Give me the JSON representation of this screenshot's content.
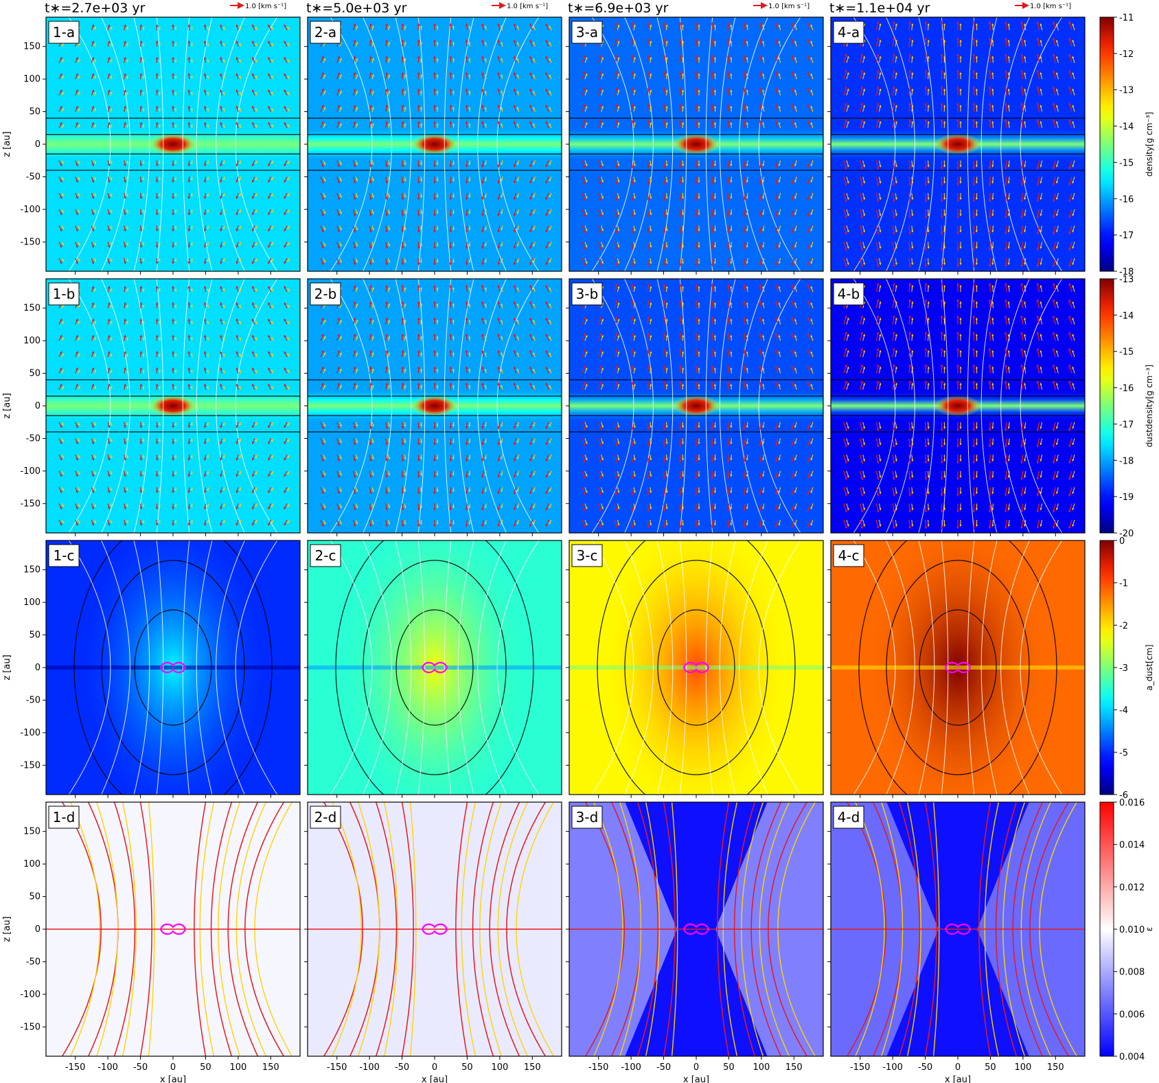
{
  "chart_data": {
    "type": "heatmap",
    "xlabel": "x [au]",
    "ylabel": "z [au]",
    "xlim": [
      -195,
      195
    ],
    "ylim": [
      -195,
      195
    ],
    "x_ticks": [
      -150,
      -100,
      -50,
      0,
      50,
      100,
      150
    ],
    "y_ticks": [
      150,
      100,
      50,
      0,
      -50,
      -100,
      -150
    ],
    "vector_key_label": "1.0 [km s⁻¹]",
    "column_times": [
      "t∗=2.7e+03 yr",
      "t∗=5.0e+03 yr",
      "t∗=6.9e+03 yr",
      "t∗=1.1e+04 yr"
    ],
    "rows": [
      {
        "row": "a",
        "quantity": "gas density",
        "colorbar_label": "density[g cm⁻³]",
        "colormap": "jet",
        "range": [
          -18,
          -11
        ],
        "ticks": [
          "-11",
          "-12",
          "-13",
          "-14",
          "-15",
          "-16",
          "-17",
          "-18"
        ],
        "panel_labels": [
          "1-a",
          "2-a",
          "3-a",
          "4-a"
        ],
        "background_levels": [
          -15.6,
          -16.0,
          -16.4,
          -16.8
        ]
      },
      {
        "row": "b",
        "quantity": "dust density",
        "colorbar_label": "dustdensity[g cm⁻³]",
        "colormap": "jet",
        "range": [
          -20,
          -13
        ],
        "ticks": [
          "-13",
          "-14",
          "-15",
          "-16",
          "-17",
          "-18",
          "-19",
          "-20"
        ],
        "panel_labels": [
          "1-b",
          "2-b",
          "3-b",
          "4-b"
        ],
        "background_levels": [
          -17.6,
          -18.0,
          -18.6,
          -19.3
        ]
      },
      {
        "row": "c",
        "quantity": "dust size",
        "colorbar_label": "a_dust[cm]",
        "colormap": "jet",
        "range": [
          -6,
          0
        ],
        "ticks": [
          "0",
          "-1",
          "-2",
          "-3",
          "-4",
          "-5",
          "-6"
        ],
        "panel_labels": [
          "1-c",
          "2-c",
          "3-c",
          "4-c"
        ],
        "background_levels": [
          -5.0,
          -3.5,
          -2.2,
          -1.2
        ]
      },
      {
        "row": "d",
        "quantity": "dust-to-gas ratio",
        "colorbar_label": "ε",
        "colormap": "bwr",
        "range": [
          0.004,
          0.016
        ],
        "ticks": [
          "0.016",
          "0.014",
          "0.012",
          "0.010",
          "0.008",
          "0.006",
          "0.004"
        ],
        "panel_labels": [
          "1-d",
          "2-d",
          "3-d",
          "4-d"
        ],
        "background_levels": [
          0.0098,
          0.0095,
          0.007,
          0.0065
        ]
      }
    ]
  },
  "colors": {
    "field_lines": "#ffffff",
    "contours": "#000000",
    "vector_gas": "#e41a1c",
    "vector_dust": "#ffd400",
    "disk_outline": "#ff00ff"
  }
}
